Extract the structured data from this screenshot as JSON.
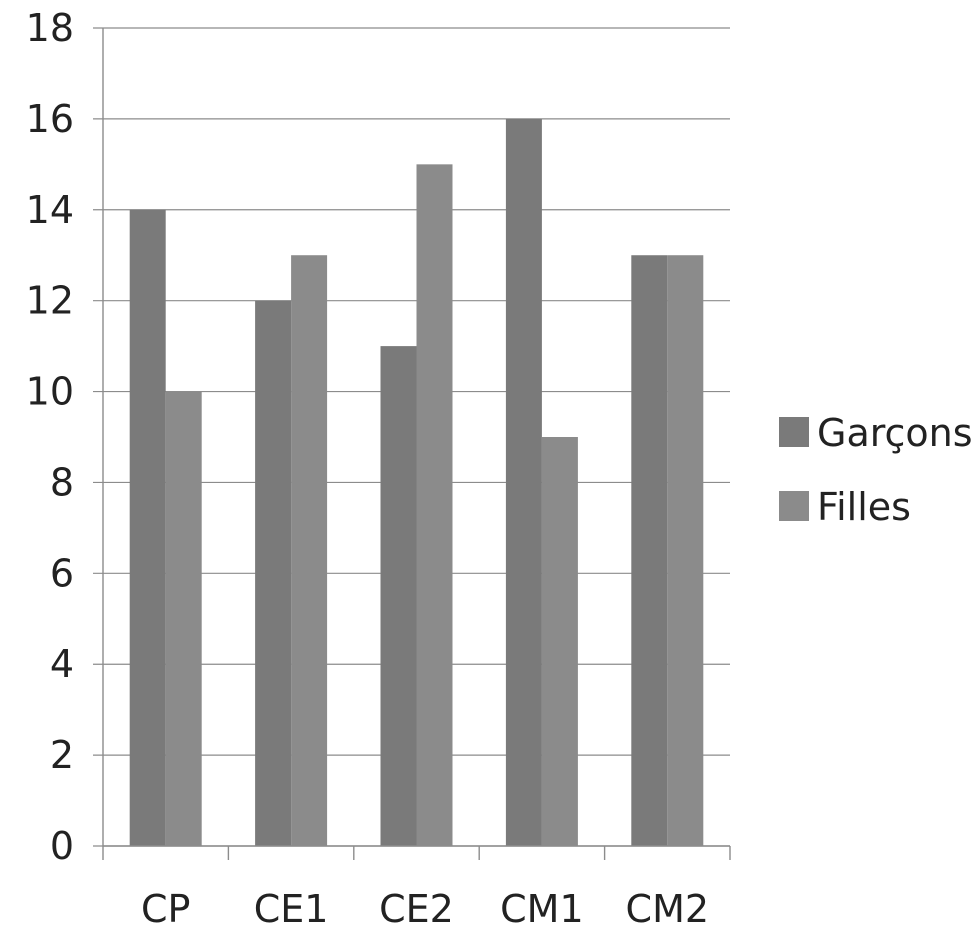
{
  "chart_data": {
    "type": "bar",
    "categories": [
      "CP",
      "CE1",
      "CE2",
      "CM1",
      "CM2"
    ],
    "series": [
      {
        "name": "Garçons",
        "values": [
          14,
          12,
          11,
          16,
          13
        ],
        "color": "#7a7a7a"
      },
      {
        "name": "Filles",
        "values": [
          10,
          13,
          15,
          9,
          13
        ],
        "color": "#8b8b8b"
      }
    ],
    "yticks": [
      0,
      2,
      4,
      6,
      8,
      10,
      12,
      14,
      16,
      18
    ],
    "ylim": [
      0,
      18
    ],
    "grid": true,
    "legend": "right",
    "colors": {
      "grid": "#8c8c8c",
      "axis": "#8c8c8c",
      "text": "#222222"
    }
  }
}
